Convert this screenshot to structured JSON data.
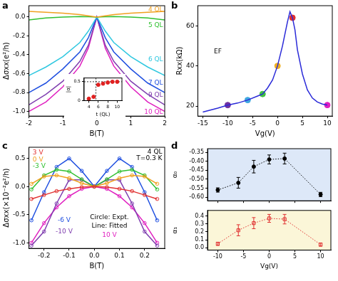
{
  "chart_data": [
    {
      "type": "line",
      "panel_label": "a",
      "x_label": "B(T)",
      "y_label": "Δσxx(e²/h)",
      "x": [
        -2,
        -1.5,
        -1,
        -0.5,
        -0.25,
        0,
        0.25,
        0.5,
        1,
        1.5,
        2
      ],
      "xlim": [
        -2,
        2
      ],
      "xticks": [
        -2,
        -1,
        0,
        1,
        2
      ],
      "ylim": [
        -1.05,
        0.12
      ],
      "yticks": [
        {
          "value": -1,
          "label": "-1.0"
        },
        -0.8,
        -0.6,
        -0.4,
        -0.2,
        {
          "value": 0,
          "label": "0.0"
        }
      ],
      "series": [
        {
          "name": "4 QL",
          "color": "#f0a020",
          "marker": "none",
          "line_style": "solid",
          "values": [
            0.06,
            0.05,
            0.04,
            0.025,
            0.012,
            0,
            0.012,
            0.025,
            0.04,
            0.05,
            0.06
          ]
        },
        {
          "name": "5 QL",
          "color": "#30c030",
          "marker": "none",
          "line_style": "solid",
          "values": [
            -0.03,
            -0.01,
            0.0,
            0.005,
            0.003,
            0,
            0.003,
            0.005,
            0.0,
            -0.01,
            -0.03
          ]
        },
        {
          "name": "6 QL",
          "color": "#30c8e0",
          "marker": "none",
          "line_style": "solid",
          "values": [
            -0.62,
            -0.53,
            -0.42,
            -0.27,
            -0.15,
            0,
            -0.15,
            -0.27,
            -0.42,
            -0.53,
            -0.62
          ]
        },
        {
          "name": "7 QL",
          "color": "#2050e0",
          "marker": "none",
          "line_style": "solid",
          "values": [
            -0.8,
            -0.7,
            -0.55,
            -0.37,
            -0.22,
            0,
            -0.22,
            -0.37,
            -0.55,
            -0.7,
            -0.8
          ]
        },
        {
          "name": "9 QL",
          "color": "#8040b0",
          "marker": "none",
          "line_style": "solid",
          "values": [
            -0.93,
            -0.82,
            -0.68,
            -0.47,
            -0.3,
            0,
            -0.3,
            -0.47,
            -0.68,
            -0.82,
            -0.93
          ]
        },
        {
          "name": "10 QL",
          "color": "#e020c0",
          "marker": "none",
          "line_style": "solid",
          "values": [
            -1.0,
            -0.9,
            -0.74,
            -0.52,
            -0.33,
            0,
            -0.33,
            -0.52,
            -0.74,
            -0.9,
            -1.0
          ]
        }
      ]
    },
    {
      "type": "scatter",
      "x_label": "t (QL)",
      "y_label": "|α|",
      "x": [
        4,
        5,
        6,
        7,
        8,
        9,
        10
      ],
      "values": [
        0.05,
        0.1,
        0.42,
        0.45,
        0.48,
        0.5,
        0.5
      ],
      "color": "#e02020",
      "marker": "circle",
      "line_style": "none",
      "xlim": [
        3,
        11
      ],
      "xticks": [
        4,
        6,
        8,
        10
      ],
      "ylim": [
        0,
        0.6
      ],
      "yticks": [
        0,
        0.5
      ],
      "hlines": [
        0.5
      ],
      "vlines": [
        5.5
      ]
    },
    {
      "type": "line",
      "panel_label": "b",
      "x_label": "Vg(V)",
      "y_label": "Rxx(kΩ)",
      "x": [
        -15,
        -12,
        -10,
        -8,
        -6,
        -4,
        -3,
        -2,
        -1,
        0,
        1,
        2,
        2.5,
        3,
        3.5,
        4,
        5,
        6,
        7,
        8,
        9,
        10
      ],
      "values": [
        17,
        19,
        20.5,
        21.5,
        23,
        25,
        26,
        29,
        33,
        40,
        50,
        62,
        67,
        64,
        58,
        48,
        36,
        28,
        24,
        22,
        21,
        20.5
      ],
      "color": "#2a2ad8",
      "marker": "none",
      "line_style": "solid",
      "markers": {
        "x": [
          -10,
          -6,
          -3,
          0,
          3,
          10
        ],
        "values": [
          20.5,
          23,
          26,
          40,
          64,
          20.5
        ],
        "colors": [
          "#7030a0",
          "#40a8e0",
          "#40c040",
          "#f0b020",
          "#e03030",
          "#e020c0"
        ]
      },
      "annotations": [
        "EF"
      ],
      "xlim": [
        -16,
        11
      ],
      "xticks": [
        -15,
        -10,
        -5,
        0,
        5,
        10
      ],
      "ylim": [
        15,
        70
      ],
      "yticks": [
        20,
        40,
        60
      ]
    },
    {
      "type": "line",
      "panel_label": "c",
      "x_label": "B(T)",
      "y_label": "Δσxx(×10⁻²e²/h)",
      "notes": [
        "4 QL",
        "T=0.3 K",
        "Circle: Expt.",
        "Line: Fitted"
      ],
      "x": [
        -0.25,
        -0.2,
        -0.15,
        -0.1,
        -0.05,
        0,
        0.05,
        0.1,
        0.15,
        0.2,
        0.25
      ],
      "xlim": [
        -0.26,
        0.28
      ],
      "xticks": [
        -0.2,
        -0.1,
        {
          "value": 0,
          "label": "0.0"
        },
        0.1,
        0.2
      ],
      "ylim": [
        -1.1,
        0.7
      ],
      "yticks": [
        {
          "value": -1,
          "label": "-1.0"
        },
        -0.5,
        {
          "value": 0,
          "label": "0.0"
        },
        0.5
      ],
      "series": [
        {
          "name": "3 V",
          "color": "#e03030",
          "marker": "open_circle",
          "line_style": "solid",
          "values": [
            -0.22,
            -0.15,
            -0.08,
            -0.04,
            -0.01,
            0,
            -0.01,
            -0.04,
            -0.08,
            -0.15,
            -0.22
          ]
        },
        {
          "name": "0 V",
          "color": "#f0a020",
          "marker": "open_circle",
          "line_style": "solid",
          "values": [
            0.05,
            0.18,
            0.2,
            0.15,
            0.06,
            0,
            0.06,
            0.15,
            0.2,
            0.18,
            0.05
          ]
        },
        {
          "name": "-3 V",
          "color": "#30c030",
          "marker": "open_circle",
          "line_style": "solid",
          "values": [
            -0.05,
            0.2,
            0.3,
            0.27,
            0.13,
            0,
            0.13,
            0.27,
            0.3,
            0.2,
            -0.05
          ]
        },
        {
          "name": "-6 V",
          "color": "#2050e0",
          "marker": "open_circle",
          "line_style": "solid",
          "values": [
            -0.6,
            -0.1,
            0.35,
            0.5,
            0.28,
            0,
            0.28,
            0.5,
            0.35,
            -0.1,
            -0.6
          ]
        },
        {
          "name": "-10 V",
          "color": "#8040b0",
          "marker": "open_circle",
          "line_style": "solid",
          "values": [
            -1.05,
            -0.8,
            -0.3,
            0.12,
            0.12,
            0,
            0.12,
            0.12,
            -0.3,
            -0.8,
            -1.05
          ]
        },
        {
          "name": "10 V",
          "color": "#e020c0",
          "marker": "open_circle",
          "line_style": "solid",
          "values": [
            -1.0,
            -0.65,
            -0.37,
            -0.17,
            -0.04,
            0,
            -0.04,
            -0.17,
            -0.37,
            -0.65,
            -1.0
          ]
        }
      ]
    },
    {
      "type": "line",
      "panel_label": "d",
      "y_label": "α₀",
      "x": [
        -10,
        -6,
        -3,
        0,
        3,
        10
      ],
      "values": [
        -0.56,
        -0.52,
        -0.43,
        -0.39,
        -0.385,
        -0.585
      ],
      "errors": [
        0.012,
        0.03,
        0.035,
        0.025,
        0.03,
        0.012
      ],
      "color": "#000000",
      "marker": "circle",
      "line_style": "dotted",
      "xlim": [
        -12,
        12
      ],
      "xticks": [
        -10,
        -5,
        0,
        5,
        10
      ],
      "tick_labels": "y",
      "ylim": [
        -0.62,
        -0.33
      ],
      "yticks": [
        -0.35,
        {
          "value": -0.4,
          "label": "-0.40"
        },
        -0.45,
        {
          "value": -0.5,
          "label": "-0.50"
        },
        -0.55,
        {
          "value": -0.6,
          "label": "-0.60"
        }
      ]
    },
    {
      "type": "line",
      "x_label": "Vg(V)",
      "y_label": "α₁",
      "x": [
        -10,
        -6,
        -3,
        0,
        3,
        10
      ],
      "values": [
        0.05,
        0.22,
        0.31,
        0.37,
        0.36,
        0.04
      ],
      "errors": [
        0.02,
        0.07,
        0.07,
        0.05,
        0.06,
        0.02
      ],
      "color": "#e03030",
      "marker": "open_square",
      "line_style": "dotted",
      "xlim": [
        -12,
        12
      ],
      "xticks": [
        -10,
        -5,
        0,
        5,
        10
      ],
      "ylim": [
        -0.03,
        0.47
      ],
      "yticks": [
        {
          "value": 0,
          "label": "0.0"
        },
        0.1,
        0.2,
        0.3,
        0.4
      ]
    }
  ]
}
